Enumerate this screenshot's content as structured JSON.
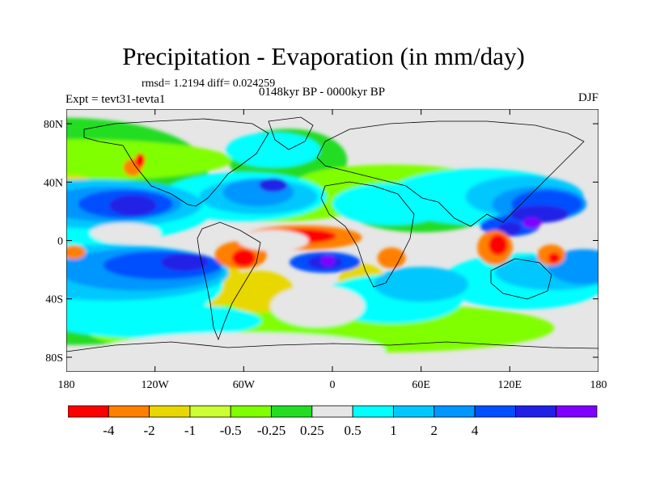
{
  "header": {
    "title": "Precipitation - Evaporation (in mm/day)",
    "rmsd": "rmsd= 1.2194 diff= 0.024259",
    "expt": "Expt = tevt31-tevta1",
    "period": "0148kyr BP - 0000kyr BP",
    "season": "DJF"
  },
  "axes": {
    "lat_ticks": [
      "80N",
      "40N",
      "0",
      "40S",
      "80S"
    ],
    "lat_values": [
      80,
      40,
      0,
      -40,
      -80
    ],
    "lon_ticks": [
      "180",
      "120W",
      "60W",
      "0",
      "60E",
      "120E",
      "180"
    ],
    "lon_values": [
      -180,
      -120,
      -60,
      0,
      60,
      120,
      180
    ],
    "lat_range": [
      -90,
      90
    ],
    "lon_range": [
      -180,
      180
    ]
  },
  "colorbar": {
    "colors": [
      "#ff0000",
      "#ff8000",
      "#e8d800",
      "#ccff33",
      "#80ff00",
      "#22dd22",
      "#e6e6e6",
      "#00ffff",
      "#00c8ff",
      "#0096ff",
      "#0050ff",
      "#2020e6",
      "#8000ff"
    ],
    "labels": [
      "-4",
      "-2",
      "-1",
      "-0.5",
      "-0.25",
      "0.25",
      "0.5",
      "1",
      "2",
      "4"
    ],
    "label_after_box": [
      1,
      2,
      3,
      4,
      5,
      6,
      7,
      8,
      9,
      10
    ]
  },
  "map_layers": [
    {
      "c": "#22dd22",
      "e": [
        [
          -180,
          48,
          120,
          30
        ],
        [
          -180,
          -50,
          140,
          18
        ],
        [
          -100,
          -52,
          70,
          14
        ],
        [
          60,
          20,
          60,
          12
        ],
        [
          -30,
          55,
          50,
          18
        ],
        [
          -180,
          -25,
          40,
          16
        ]
      ]
    },
    {
      "c": "#80ff00",
      "e": [
        [
          -180,
          55,
          140,
          12
        ],
        [
          -80,
          -60,
          110,
          14
        ],
        [
          30,
          -60,
          150,
          14
        ],
        [
          -40,
          25,
          80,
          10
        ],
        [
          40,
          40,
          80,
          10
        ]
      ]
    },
    {
      "c": "#e8d800",
      "e": [
        [
          -90,
          -30,
          40,
          14
        ],
        [
          -175,
          35,
          20,
          8
        ],
        [
          -50,
          -35,
          30,
          12
        ],
        [
          20,
          -28,
          20,
          10
        ]
      ]
    },
    {
      "c": "#00ffff",
      "e": [
        [
          -170,
          20,
          110,
          18
        ],
        [
          -170,
          -30,
          120,
          24
        ],
        [
          -60,
          30,
          70,
          14
        ],
        [
          40,
          25,
          50,
          12
        ],
        [
          40,
          -40,
          60,
          14
        ],
        [
          100,
          30,
          80,
          16
        ],
        [
          130,
          -28,
          70,
          16
        ],
        [
          -40,
          62,
          40,
          10
        ],
        [
          -120,
          -55,
          90,
          10
        ]
      ]
    },
    {
      "c": "#00c8ff",
      "e": [
        [
          -160,
          25,
          90,
          14
        ],
        [
          -150,
          -22,
          100,
          16
        ],
        [
          -50,
          30,
          50,
          10
        ],
        [
          130,
          30,
          50,
          12
        ],
        [
          150,
          -22,
          50,
          10
        ],
        [
          60,
          -30,
          40,
          10
        ]
      ]
    },
    {
      "c": "#0096ff",
      "e": [
        [
          -150,
          25,
          60,
          10
        ],
        [
          -130,
          -20,
          70,
          12
        ],
        [
          -50,
          33,
          30,
          8
        ],
        [
          140,
          25,
          40,
          10
        ],
        [
          170,
          -18,
          30,
          10
        ]
      ]
    },
    {
      "c": "#0050ff",
      "e": [
        [
          -140,
          25,
          40,
          8
        ],
        [
          -115,
          -17,
          50,
          8
        ],
        [
          145,
          25,
          30,
          8
        ],
        [
          -5,
          -15,
          30,
          6
        ],
        [
          120,
          10,
          25,
          6
        ]
      ]
    },
    {
      "c": "#2020e6",
      "e": [
        [
          -135,
          24,
          20,
          6
        ],
        [
          -100,
          -15,
          20,
          5
        ],
        [
          140,
          18,
          25,
          5
        ],
        [
          -5,
          -15,
          15,
          4
        ],
        [
          120,
          8,
          10,
          4
        ],
        [
          -40,
          38,
          12,
          4
        ]
      ]
    },
    {
      "c": "#8000ff",
      "e": [
        [
          135,
          12,
          8,
          3
        ],
        [
          -3,
          -14,
          6,
          3
        ]
      ]
    },
    {
      "c": "#ff8000",
      "e": [
        [
          -20,
          2,
          50,
          7
        ],
        [
          -62,
          -10,
          22,
          8
        ],
        [
          110,
          -5,
          15,
          10
        ],
        [
          148,
          -10,
          12,
          6
        ],
        [
          40,
          -12,
          12,
          6
        ],
        [
          -135,
          50,
          8,
          5
        ],
        [
          -175,
          -8,
          10,
          4
        ]
      ]
    },
    {
      "c": "#ff0000",
      "e": [
        [
          -20,
          3,
          28,
          4
        ],
        [
          -60,
          -12,
          10,
          5
        ],
        [
          112,
          -3,
          8,
          6
        ],
        [
          -130,
          55,
          4,
          4
        ],
        [
          150,
          -12,
          5,
          3
        ]
      ]
    }
  ],
  "map_gray": [
    [
      -10,
      -45,
      40,
      12
    ],
    [
      -40,
      0,
      30,
      6
    ],
    [
      -140,
      5,
      30,
      6
    ],
    [
      70,
      -5,
      25,
      5
    ],
    [
      -60,
      -75,
      120,
      10
    ]
  ]
}
